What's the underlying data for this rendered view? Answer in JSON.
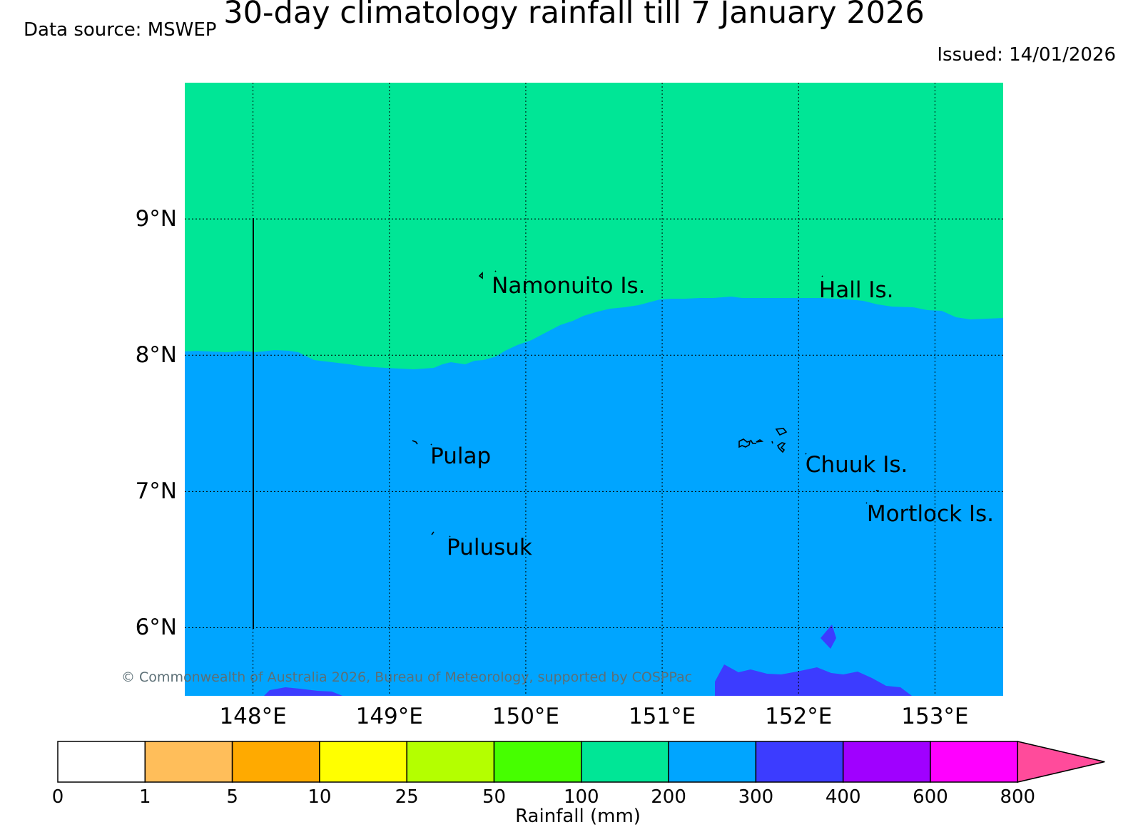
{
  "header": {
    "title": "30-day climatology rainfall till 7 January 2026",
    "source": "Data source: MSWEP",
    "issued": "Issued: 14/01/2026"
  },
  "map": {
    "lon_range": [
      147.5,
      153.5
    ],
    "lat_range": [
      5.5,
      10.0
    ],
    "lat_ticks": [
      {
        "value": 9,
        "label": "9°N"
      },
      {
        "value": 8,
        "label": "8°N"
      },
      {
        "value": 7,
        "label": "7°N"
      },
      {
        "value": 6,
        "label": "6°N"
      }
    ],
    "lon_ticks": [
      {
        "value": 148,
        "label": "148°E"
      },
      {
        "value": 149,
        "label": "149°E"
      },
      {
        "value": 150,
        "label": "150°E"
      },
      {
        "value": 151,
        "label": "151°E"
      },
      {
        "value": 152,
        "label": "152°E"
      },
      {
        "value": 153,
        "label": "153°E"
      }
    ],
    "gridlines": "dotted",
    "places": [
      {
        "name": "Namonuito Is.",
        "lon": 149.75,
        "lat": 8.58
      },
      {
        "name": "Hall Is.",
        "lon": 152.15,
        "lat": 8.55
      },
      {
        "name": "Pulap",
        "lon": 149.3,
        "lat": 7.33
      },
      {
        "name": "Chuuk Is.",
        "lon": 152.05,
        "lat": 7.27
      },
      {
        "name": "Mortlock Is.",
        "lon": 152.5,
        "lat": 6.91
      },
      {
        "name": "Pulusuk",
        "lon": 149.42,
        "lat": 6.66
      }
    ],
    "colors": {
      "band_100_200": "#00e696",
      "band_200_300": "#00a5ff",
      "band_300_400": "#3c3cff"
    },
    "copyright": "© Commonwealth of Australia 2026, Bureau of Meteorology, supported by COSPPac"
  },
  "colorbar": {
    "label": "Rainfall (mm)",
    "ticks": [
      "0",
      "1",
      "5",
      "10",
      "25",
      "50",
      "100",
      "200",
      "300",
      "400",
      "600",
      "800"
    ],
    "colors": [
      "#ffffff",
      "#ffbe5a",
      "#ffaa00",
      "#ffff00",
      "#b4ff00",
      "#46ff00",
      "#00e696",
      "#00a5ff",
      "#3c3cff",
      "#a000ff",
      "#ff00ff"
    ],
    "extend_color": "#ff4b9b"
  }
}
